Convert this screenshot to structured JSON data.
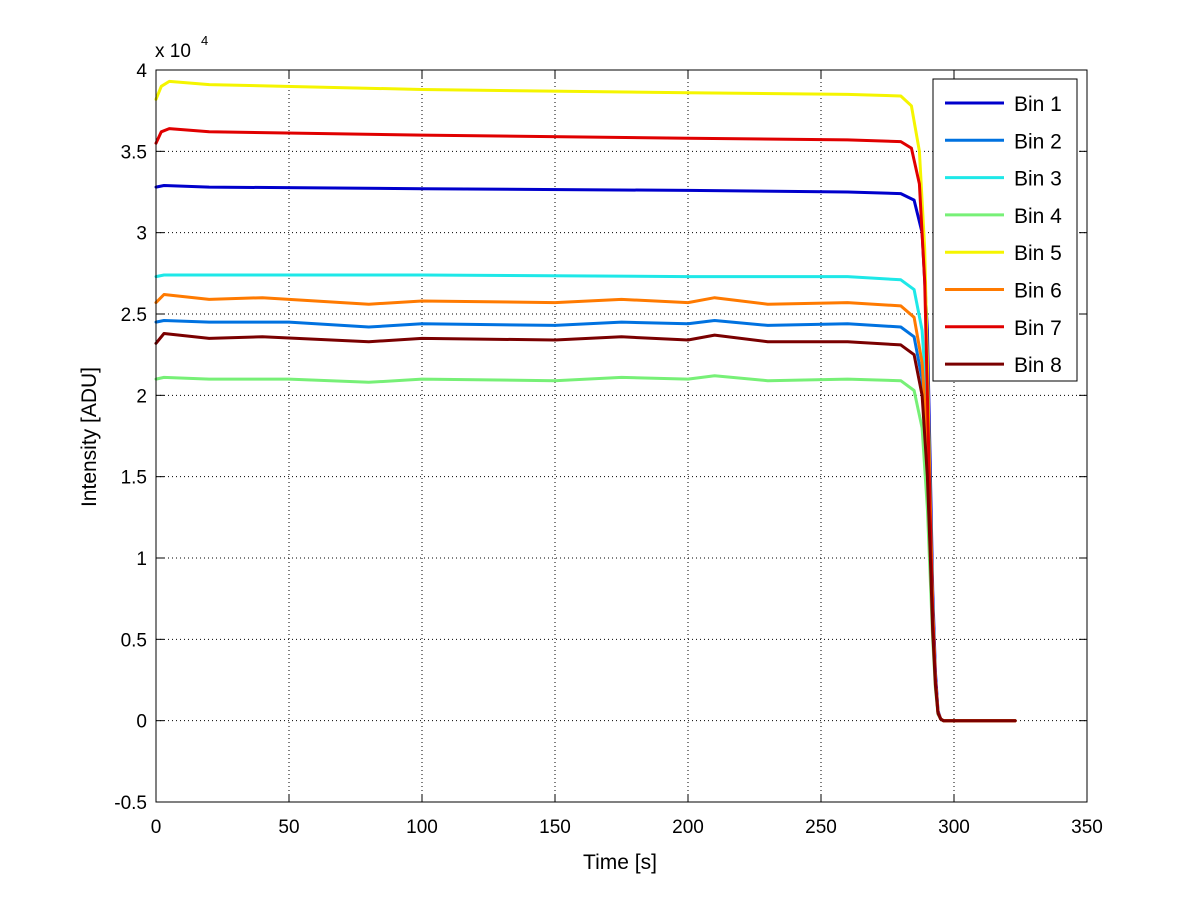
{
  "chart_data": {
    "type": "line",
    "xlabel": "Time [s]",
    "ylabel": "Intensity [ADU]",
    "xlim": [
      0,
      350
    ],
    "ylim": [
      -5000,
      40000
    ],
    "x_ticks": [
      0,
      50,
      100,
      150,
      200,
      250,
      300,
      350
    ],
    "x_tick_labels": [
      "0",
      "50",
      "100",
      "150",
      "200",
      "250",
      "300",
      "350"
    ],
    "y_ticks": [
      -5000,
      0,
      5000,
      10000,
      15000,
      20000,
      25000,
      30000,
      35000,
      40000
    ],
    "y_tick_labels": [
      "-0.5",
      "0",
      "0.5",
      "1",
      "1.5",
      "2",
      "2.5",
      "3",
      "3.5",
      "4"
    ],
    "y_multiplier": {
      "base": "x 10",
      "exponent": "4"
    },
    "grid": true,
    "legend_position": "top-right",
    "series": [
      {
        "name": "Bin 1",
        "color": "#0000cc",
        "x": [
          0,
          3,
          20,
          100,
          200,
          260,
          280,
          285,
          288,
          290,
          291,
          292,
          293,
          294,
          295,
          296,
          300,
          323
        ],
        "y": [
          32800,
          32900,
          32800,
          32700,
          32600,
          32500,
          32400,
          32000,
          30000,
          24000,
          16000,
          8000,
          3000,
          600,
          100,
          0,
          0,
          0
        ]
      },
      {
        "name": "Bin 2",
        "color": "#0072e0",
        "x": [
          0,
          3,
          20,
          50,
          80,
          100,
          150,
          175,
          200,
          210,
          230,
          260,
          280,
          285,
          288,
          290,
          291,
          292,
          293,
          294,
          295,
          296,
          300,
          323
        ],
        "y": [
          24500,
          24600,
          24500,
          24500,
          24200,
          24400,
          24300,
          24500,
          24400,
          24600,
          24300,
          24400,
          24200,
          23600,
          21000,
          16000,
          11000,
          6000,
          2500,
          500,
          100,
          0,
          0,
          0
        ]
      },
      {
        "name": "Bin 3",
        "color": "#1ee8e8",
        "x": [
          0,
          3,
          20,
          100,
          200,
          260,
          280,
          285,
          288,
          290,
          291,
          292,
          293,
          294,
          295,
          296,
          300,
          323
        ],
        "y": [
          27300,
          27400,
          27400,
          27400,
          27300,
          27300,
          27100,
          26500,
          24000,
          19000,
          13000,
          7000,
          2500,
          500,
          100,
          0,
          0,
          0
        ]
      },
      {
        "name": "Bin 4",
        "color": "#77f077",
        "x": [
          0,
          3,
          20,
          50,
          80,
          100,
          150,
          175,
          200,
          210,
          230,
          260,
          280,
          285,
          288,
          290,
          291,
          292,
          293,
          294,
          295,
          296,
          300,
          323
        ],
        "y": [
          21000,
          21100,
          21000,
          21000,
          20800,
          21000,
          20900,
          21100,
          21000,
          21200,
          20900,
          21000,
          20900,
          20300,
          18000,
          13000,
          9000,
          5000,
          2000,
          400,
          100,
          0,
          0,
          0
        ]
      },
      {
        "name": "Bin 5",
        "color": "#f5f500",
        "x": [
          0,
          2,
          5,
          20,
          100,
          200,
          260,
          280,
          284,
          287,
          289,
          290,
          291,
          292,
          293,
          294,
          295,
          296,
          300,
          323
        ],
        "y": [
          38200,
          39000,
          39300,
          39100,
          38800,
          38600,
          38500,
          38400,
          37800,
          35000,
          29000,
          22000,
          14000,
          7000,
          2500,
          500,
          100,
          0,
          0,
          0
        ]
      },
      {
        "name": "Bin 6",
        "color": "#ff7a00",
        "x": [
          0,
          3,
          20,
          40,
          80,
          100,
          150,
          175,
          200,
          210,
          230,
          260,
          280,
          285,
          288,
          290,
          291,
          292,
          293,
          294,
          295,
          296,
          300,
          323
        ],
        "y": [
          25700,
          26200,
          25900,
          26000,
          25600,
          25800,
          25700,
          25900,
          25700,
          26000,
          25600,
          25700,
          25500,
          24800,
          22000,
          17000,
          12000,
          6500,
          2500,
          500,
          100,
          0,
          0,
          0
        ]
      },
      {
        "name": "Bin 7",
        "color": "#e00000",
        "x": [
          0,
          2,
          5,
          20,
          100,
          200,
          260,
          280,
          284,
          287,
          289,
          290,
          291,
          292,
          293,
          294,
          295,
          296,
          300,
          323
        ],
        "y": [
          35500,
          36200,
          36400,
          36200,
          36000,
          35800,
          35700,
          35600,
          35200,
          33000,
          27000,
          20000,
          13000,
          6500,
          2500,
          500,
          100,
          0,
          0,
          0
        ]
      },
      {
        "name": "Bin 8",
        "color": "#7a0000",
        "x": [
          0,
          3,
          20,
          40,
          80,
          100,
          150,
          175,
          200,
          210,
          230,
          260,
          280,
          285,
          288,
          290,
          291,
          292,
          293,
          294,
          295,
          296,
          300,
          323
        ],
        "y": [
          23200,
          23800,
          23500,
          23600,
          23300,
          23500,
          23400,
          23600,
          23400,
          23700,
          23300,
          23300,
          23100,
          22500,
          20000,
          15000,
          10500,
          5500,
          2200,
          450,
          100,
          0,
          0,
          0
        ]
      }
    ]
  }
}
